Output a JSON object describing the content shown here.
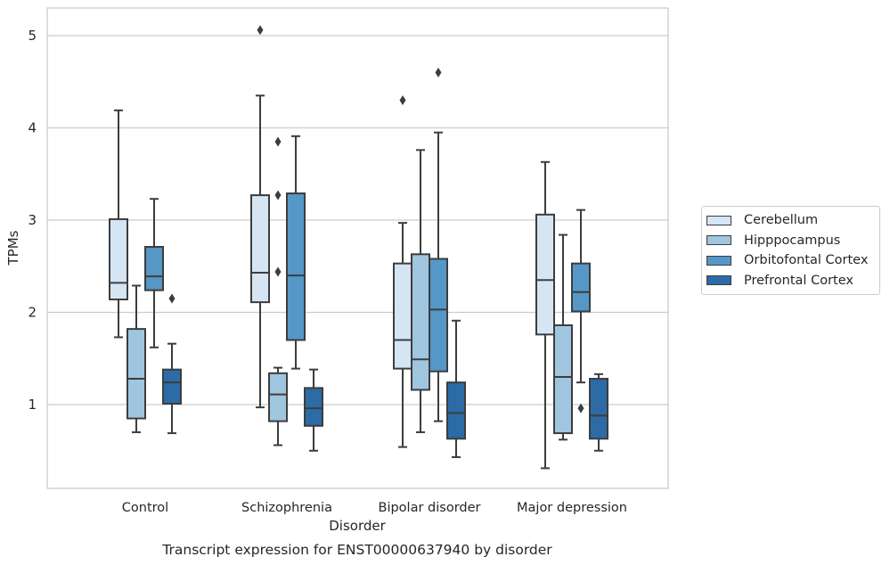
{
  "chart_data": {
    "type": "box",
    "title": "Transcript expression for ENST00000637940 by disorder",
    "xlabel": "Disorder",
    "ylabel": "TPMs",
    "categories": [
      "Control",
      "Schizophrenia",
      "Bipolar disorder",
      "Major depression"
    ],
    "ylim": [
      0.05,
      5.3
    ],
    "yticks": [
      "1",
      "2",
      "3",
      "4",
      "5"
    ],
    "grid": "horizontal",
    "legend_position": "right",
    "series": [
      {
        "name": "Cerebellum",
        "color": "#d6e5f4",
        "boxes": [
          {
            "whislo": 1.73,
            "q1": 2.14,
            "median": 2.32,
            "q3": 3.01,
            "whishi": 4.19,
            "fliers": []
          },
          {
            "whislo": 0.97,
            "q1": 2.11,
            "median": 2.43,
            "q3": 3.27,
            "whishi": 4.35,
            "fliers": [
              5.06
            ]
          },
          {
            "whislo": 0.54,
            "q1": 1.39,
            "median": 1.7,
            "q3": 2.53,
            "whishi": 2.97,
            "fliers": [
              4.3
            ]
          },
          {
            "whislo": 0.31,
            "q1": 1.76,
            "median": 2.35,
            "q3": 3.06,
            "whishi": 3.63,
            "fliers": []
          }
        ]
      },
      {
        "name": "Hipppocampus",
        "color": "#a0c6df",
        "boxes": [
          {
            "whislo": 0.7,
            "q1": 0.85,
            "median": 1.28,
            "q3": 1.82,
            "whishi": 2.29,
            "fliers": []
          },
          {
            "whislo": 0.56,
            "q1": 0.82,
            "median": 1.11,
            "q3": 1.34,
            "whishi": 1.4,
            "fliers": [
              3.85,
              3.27,
              2.44
            ]
          },
          {
            "whislo": 0.7,
            "q1": 1.16,
            "median": 1.49,
            "q3": 2.63,
            "whishi": 3.76,
            "fliers": []
          },
          {
            "whislo": 0.62,
            "q1": 0.69,
            "median": 1.3,
            "q3": 1.86,
            "whishi": 2.84,
            "fliers": []
          }
        ]
      },
      {
        "name": "Orbitofontal Cortex",
        "color": "#5597c7",
        "boxes": [
          {
            "whislo": 1.62,
            "q1": 2.24,
            "median": 2.39,
            "q3": 2.71,
            "whishi": 3.23,
            "fliers": []
          },
          {
            "whislo": 1.39,
            "q1": 1.7,
            "median": 2.4,
            "q3": 3.29,
            "whishi": 3.91,
            "fliers": []
          },
          {
            "whislo": 0.82,
            "q1": 1.36,
            "median": 2.03,
            "q3": 2.58,
            "whishi": 3.95,
            "fliers": [
              4.6
            ]
          },
          {
            "whislo": 1.24,
            "q1": 2.01,
            "median": 2.22,
            "q3": 2.53,
            "whishi": 3.11,
            "fliers": [
              0.96
            ]
          }
        ]
      },
      {
        "name": "Prefrontal Cortex",
        "color": "#2c6ba6",
        "boxes": [
          {
            "whislo": 0.69,
            "q1": 1.01,
            "median": 1.24,
            "q3": 1.38,
            "whishi": 1.66,
            "fliers": [
              2.15
            ]
          },
          {
            "whislo": 0.5,
            "q1": 0.77,
            "median": 0.96,
            "q3": 1.18,
            "whishi": 1.38,
            "fliers": []
          },
          {
            "whislo": 0.43,
            "q1": 0.63,
            "median": 0.91,
            "q3": 1.24,
            "whishi": 1.91,
            "fliers": []
          },
          {
            "whislo": 0.5,
            "q1": 0.63,
            "median": 0.88,
            "q3": 1.28,
            "whishi": 1.33,
            "fliers": []
          }
        ]
      }
    ]
  }
}
